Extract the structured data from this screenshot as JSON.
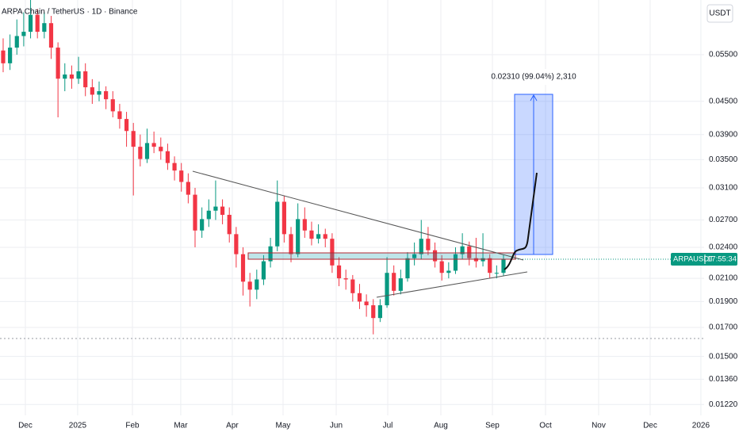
{
  "chart_data": {
    "type": "candlestick",
    "title": "ARPA Chain / TetherUS · 1D · Binance",
    "y_unit_label": "USDT",
    "symbol_label": "ARPAUSDT",
    "countdown": "17:55:34",
    "annotation": "0.02310 (99.04%) 2,310",
    "log_scale": true,
    "grid": true,
    "up_color": "#089981",
    "down_color": "#f23645",
    "categories": [
      null,
      null,
      null,
      null,
      null,
      null,
      null,
      null,
      null,
      null,
      null,
      null,
      null,
      null,
      null,
      null,
      null,
      null,
      null,
      null,
      null,
      null,
      null,
      null,
      null,
      null,
      null,
      null,
      null,
      null,
      null,
      null,
      null,
      null,
      null,
      null,
      null,
      null,
      null,
      null,
      null,
      null,
      null,
      null,
      null,
      null,
      null,
      null,
      null,
      null,
      null,
      null,
      null,
      null,
      null,
      null,
      null,
      null,
      null,
      null,
      null,
      null,
      null,
      null,
      null,
      null,
      null,
      null,
      null,
      null,
      null,
      null,
      null,
      null
    ],
    "open": [
      0.056,
      0.053,
      0.0567,
      0.0596,
      0.0607,
      0.0653,
      0.0607,
      0.063,
      0.0567,
      0.0496,
      0.0505,
      0.0496,
      0.0512,
      0.0478,
      0.0463,
      0.047,
      0.0454,
      0.0431,
      0.0417,
      0.0396,
      0.037,
      0.0351,
      0.0376,
      0.037,
      0.0363,
      0.0345,
      0.0334,
      0.0318,
      0.0301,
      0.0258,
      0.0271,
      0.0281,
      0.0286,
      0.0276,
      0.0254,
      0.0233,
      0.0207,
      0.02,
      0.0209,
      0.0226,
      0.0241,
      0.0292,
      0.0254,
      0.0233,
      0.0271,
      0.0258,
      0.0249,
      0.0254,
      0.0249,
      0.0222,
      0.021,
      0.0209,
      0.0197,
      0.019,
      0.0187,
      0.0177,
      0.0187,
      0.0215,
      0.0199,
      0.021,
      0.0229,
      0.0233,
      0.0249,
      0.0237,
      0.0226,
      0.0215,
      0.0217,
      0.0233,
      0.0241,
      0.0229,
      0.0226,
      0.0229,
      0.0215,
      0.0215
    ],
    "high": [
      0.059,
      0.06,
      0.064,
      0.066,
      0.07,
      0.067,
      0.066,
      0.065,
      0.058,
      0.053,
      0.0525,
      0.0545,
      0.053,
      0.0495,
      0.049,
      0.048,
      0.047,
      0.0445,
      0.043,
      0.041,
      0.039,
      0.04,
      0.0395,
      0.0385,
      0.0375,
      0.0355,
      0.0345,
      0.033,
      0.031,
      0.0285,
      0.0295,
      0.032,
      0.0295,
      0.0285,
      0.0262,
      0.024,
      0.0215,
      0.0218,
      0.0232,
      0.025,
      0.032,
      0.03,
      0.0262,
      0.029,
      0.0285,
      0.0268,
      0.0265,
      0.026,
      0.0255,
      0.023,
      0.0218,
      0.0213,
      0.0205,
      0.0196,
      0.0192,
      0.0192,
      0.023,
      0.0222,
      0.0218,
      0.0235,
      0.0245,
      0.027,
      0.0262,
      0.0245,
      0.0232,
      0.0225,
      0.024,
      0.0255,
      0.0246,
      0.025,
      0.0255,
      0.0233,
      0.0222,
      0.0232
    ],
    "low": [
      0.051,
      0.0515,
      0.055,
      0.057,
      0.059,
      0.059,
      0.059,
      0.054,
      0.042,
      0.047,
      0.0475,
      0.0485,
      0.046,
      0.0445,
      0.045,
      0.0435,
      0.042,
      0.04,
      0.037,
      0.03,
      0.034,
      0.0345,
      0.036,
      0.035,
      0.0335,
      0.032,
      0.0305,
      0.029,
      0.024,
      0.025,
      0.0262,
      0.027,
      0.0265,
      0.0245,
      0.022,
      0.0195,
      0.0186,
      0.0192,
      0.0204,
      0.022,
      0.0236,
      0.0245,
      0.0225,
      0.023,
      0.025,
      0.0242,
      0.0244,
      0.024,
      0.0215,
      0.0203,
      0.02,
      0.019,
      0.0184,
      0.0178,
      0.0165,
      0.0174,
      0.0185,
      0.0195,
      0.0196,
      0.0207,
      0.0222,
      0.0228,
      0.0232,
      0.022,
      0.0208,
      0.021,
      0.0214,
      0.0228,
      0.0222,
      0.022,
      0.0221,
      0.021,
      0.021,
      0.0212
    ],
    "close": [
      0.053,
      0.0567,
      0.0596,
      0.0607,
      0.0653,
      0.0607,
      0.063,
      0.0567,
      0.0496,
      0.0505,
      0.0496,
      0.0512,
      0.0478,
      0.0463,
      0.047,
      0.0454,
      0.0431,
      0.0417,
      0.0396,
      0.037,
      0.0351,
      0.0376,
      0.037,
      0.0363,
      0.0345,
      0.0334,
      0.0318,
      0.0301,
      0.0258,
      0.0271,
      0.0281,
      0.0286,
      0.0276,
      0.0254,
      0.0233,
      0.0207,
      0.02,
      0.0209,
      0.0226,
      0.0241,
      0.0292,
      0.0254,
      0.0233,
      0.0271,
      0.0258,
      0.0249,
      0.0254,
      0.0249,
      0.0222,
      0.021,
      0.0209,
      0.0197,
      0.019,
      0.0187,
      0.0177,
      0.0187,
      0.0215,
      0.0199,
      0.021,
      0.0229,
      0.0233,
      0.0249,
      0.0237,
      0.0226,
      0.0215,
      0.0217,
      0.0233,
      0.0241,
      0.0229,
      0.0226,
      0.0229,
      0.0215,
      0.0215,
      0.0228
    ],
    "xlim": [
      -0.46,
      102.27
    ],
    "xticks": [
      {
        "value": 3.24,
        "label": "Dec"
      },
      {
        "value": 10.87,
        "label": "2025"
      },
      {
        "value": 18.86,
        "label": "Feb"
      },
      {
        "value": 25.91,
        "label": "Mar"
      },
      {
        "value": 33.43,
        "label": "Apr"
      },
      {
        "value": 40.84,
        "label": "May"
      },
      {
        "value": 48.59,
        "label": "Jun"
      },
      {
        "value": 56.11,
        "label": "Jul"
      },
      {
        "value": 63.86,
        "label": "Aug"
      },
      {
        "value": 71.38,
        "label": "Sep"
      },
      {
        "value": 79.13,
        "label": "Oct"
      },
      {
        "value": 86.88,
        "label": "Nov"
      },
      {
        "value": 94.4,
        "label": "Dec"
      },
      {
        "value": 101.8,
        "label": "2026"
      }
    ],
    "ylim": [
      0.0116,
      0.0696
    ],
    "yticks": [
      {
        "value": 0.055,
        "label": "0.05500"
      },
      {
        "value": 0.045,
        "label": "0.04500"
      },
      {
        "value": 0.039,
        "label": "0.03900"
      },
      {
        "value": 0.035,
        "label": "0.03500"
      },
      {
        "value": 0.031,
        "label": "0.03100"
      },
      {
        "value": 0.027,
        "label": "0.02700"
      },
      {
        "value": 0.024,
        "label": "0.02400"
      },
      {
        "value": 0.021,
        "label": "0.02100"
      },
      {
        "value": 0.019,
        "label": "0.01900"
      },
      {
        "value": 0.017,
        "label": "0.01700"
      },
      {
        "value": 0.015,
        "label": "0.01500"
      },
      {
        "value": 0.0136,
        "label": "0.01360"
      },
      {
        "value": 0.0122,
        "label": "0.01220"
      }
    ]
  }
}
